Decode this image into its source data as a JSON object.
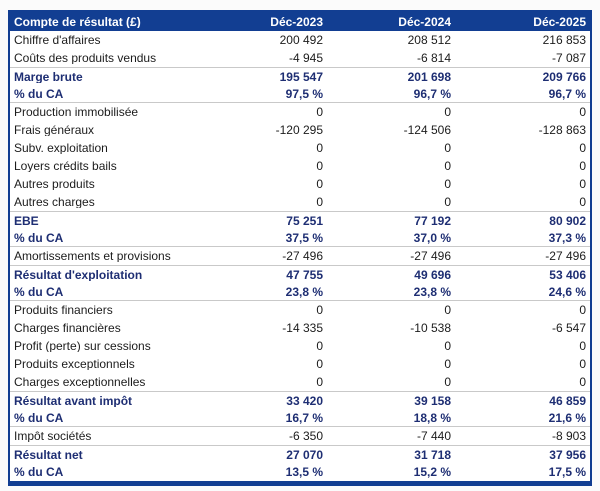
{
  "table": {
    "header": {
      "label": "Compte de résultat (£)",
      "columns": [
        "Déc-2023",
        "Déc-2024",
        "Déc-2025"
      ]
    },
    "rows": [
      {
        "label": "Chiffre d'affaires",
        "values": [
          "200 492",
          "208 512",
          "216 853"
        ],
        "bold": false
      },
      {
        "label": "Coûts des produits vendus",
        "values": [
          "-4 945",
          "-6 814",
          "-7 087"
        ],
        "bold": false
      },
      {
        "label": "Marge brute",
        "values": [
          "195 547",
          "201 698",
          "209 766"
        ],
        "bold": true
      },
      {
        "label": "% du CA",
        "values": [
          "97,5 %",
          "96,7 %",
          "96,7 %"
        ],
        "bold": true
      },
      {
        "label": "Production immobilisée",
        "values": [
          "0",
          "0",
          "0"
        ],
        "bold": false
      },
      {
        "label": "Frais généraux",
        "values": [
          "-120 295",
          "-124 506",
          "-128 863"
        ],
        "bold": false
      },
      {
        "label": "Subv. exploitation",
        "values": [
          "0",
          "0",
          "0"
        ],
        "bold": false
      },
      {
        "label": "Loyers crédits bails",
        "values": [
          "0",
          "0",
          "0"
        ],
        "bold": false
      },
      {
        "label": "Autres produits",
        "values": [
          "0",
          "0",
          "0"
        ],
        "bold": false
      },
      {
        "label": "Autres charges",
        "values": [
          "0",
          "0",
          "0"
        ],
        "bold": false
      },
      {
        "label": "EBE",
        "values": [
          "75 251",
          "77 192",
          "80 902"
        ],
        "bold": true
      },
      {
        "label": "% du CA",
        "values": [
          "37,5 %",
          "37,0 %",
          "37,3 %"
        ],
        "bold": true
      },
      {
        "label": "Amortissements et provisions",
        "values": [
          "-27 496",
          "-27 496",
          "-27 496"
        ],
        "bold": false
      },
      {
        "label": "Résultat d'exploitation",
        "values": [
          "47 755",
          "49 696",
          "53 406"
        ],
        "bold": true
      },
      {
        "label": "% du CA",
        "values": [
          "23,8 %",
          "23,8 %",
          "24,6 %"
        ],
        "bold": true
      },
      {
        "label": "Produits financiers",
        "values": [
          "0",
          "0",
          "0"
        ],
        "bold": false
      },
      {
        "label": "Charges financières",
        "values": [
          "-14 335",
          "-10 538",
          "-6 547"
        ],
        "bold": false
      },
      {
        "label": "Profit (perte) sur cessions",
        "values": [
          "0",
          "0",
          "0"
        ],
        "bold": false
      },
      {
        "label": "Produits exceptionnels",
        "values": [
          "0",
          "0",
          "0"
        ],
        "bold": false
      },
      {
        "label": "Charges exceptionnelles",
        "values": [
          "0",
          "0",
          "0"
        ],
        "bold": false
      },
      {
        "label": "Résultat avant impôt",
        "values": [
          "33 420",
          "39 158",
          "46 859"
        ],
        "bold": true
      },
      {
        "label": "% du CA",
        "values": [
          "16,7 %",
          "18,8 %",
          "21,6 %"
        ],
        "bold": true
      },
      {
        "label": "Impôt sociétés",
        "values": [
          "-6 350",
          "-7 440",
          "-8 903"
        ],
        "bold": false
      },
      {
        "label": "Résultat net",
        "values": [
          "27 070",
          "31 718",
          "37 956"
        ],
        "bold": true
      },
      {
        "label": "% du CA",
        "values": [
          "13,5 %",
          "15,2 %",
          "17,5 %"
        ],
        "bold": true
      }
    ],
    "colors": {
      "header_bg": "#123e92",
      "border": "#123e92",
      "bold_text": "#1e2e73",
      "text": "#1c1c1c",
      "row_divider": "#c9c9c9",
      "page_bg": "#fbfbfb",
      "table_bg": "#ffffff"
    }
  }
}
